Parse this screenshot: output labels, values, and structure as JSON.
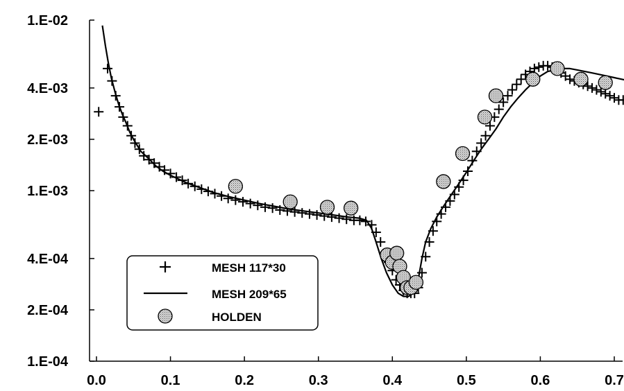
{
  "chart_data": {
    "type": "line",
    "title": "",
    "xlabel": "",
    "ylabel": "",
    "xlim": [
      0.0,
      0.72
    ],
    "ylim": [
      0.0001,
      0.01
    ],
    "yscale": "log",
    "grid": false,
    "legend_position": "bottom-left",
    "x_ticks": [
      "0.0",
      "0.1",
      "0.2",
      "0.3",
      "0.4",
      "0.5",
      "0.6",
      "0.7"
    ],
    "y_ticks": [
      "1.E-02",
      "4.E-03",
      "2.E-03",
      "1.E-03",
      "4.E-04",
      "2.E-04",
      "1.E-04"
    ],
    "series": [
      {
        "name": "MESH 117*30",
        "marker": "plus",
        "x": [
          0.003,
          0.015,
          0.021,
          0.026,
          0.031,
          0.036,
          0.042,
          0.047,
          0.052,
          0.058,
          0.064,
          0.071,
          0.078,
          0.085,
          0.092,
          0.1,
          0.108,
          0.116,
          0.124,
          0.133,
          0.142,
          0.151,
          0.16,
          0.169,
          0.178,
          0.188,
          0.198,
          0.208,
          0.218,
          0.228,
          0.238,
          0.248,
          0.258,
          0.268,
          0.278,
          0.288,
          0.298,
          0.308,
          0.318,
          0.328,
          0.338,
          0.348,
          0.356,
          0.364,
          0.372,
          0.378,
          0.384,
          0.39,
          0.395,
          0.4,
          0.405,
          0.41,
          0.415,
          0.42,
          0.425,
          0.43,
          0.435,
          0.44,
          0.445,
          0.45,
          0.455,
          0.46,
          0.466,
          0.472,
          0.478,
          0.484,
          0.49,
          0.496,
          0.502,
          0.508,
          0.514,
          0.52,
          0.526,
          0.532,
          0.538,
          0.544,
          0.55,
          0.556,
          0.562,
          0.568,
          0.574,
          0.58,
          0.586,
          0.592,
          0.598,
          0.604,
          0.61,
          0.616,
          0.622,
          0.628,
          0.634,
          0.64,
          0.646,
          0.652,
          0.658,
          0.664,
          0.67,
          0.676,
          0.682,
          0.688,
          0.694,
          0.7,
          0.706,
          0.712
        ],
        "y": [
          0.0029,
          0.0052,
          0.0044,
          0.0036,
          0.0031,
          0.0027,
          0.0024,
          0.0021,
          0.0019,
          0.00175,
          0.0016,
          0.00152,
          0.00145,
          0.00138,
          0.00132,
          0.00126,
          0.0012,
          0.00115,
          0.0011,
          0.00106,
          0.00102,
          0.00099,
          0.00096,
          0.00093,
          0.0009,
          0.00088,
          0.00086,
          0.00084,
          0.00082,
          0.0008,
          0.00079,
          0.00077,
          0.00076,
          0.00075,
          0.00074,
          0.00073,
          0.00072,
          0.00071,
          0.0007,
          0.00069,
          0.00068,
          0.00067,
          0.00067,
          0.00066,
          0.00063,
          0.00057,
          0.0005,
          0.00043,
          0.00038,
          0.00034,
          0.0003,
          0.00028,
          0.00026,
          0.00025,
          0.00025,
          0.00025,
          0.00027,
          0.00033,
          0.00041,
          0.0005,
          0.00058,
          0.00066,
          0.00073,
          0.0008,
          0.00087,
          0.00095,
          0.00105,
          0.00115,
          0.0013,
          0.0015,
          0.0017,
          0.0019,
          0.0021,
          0.0024,
          0.0027,
          0.003,
          0.0033,
          0.0036,
          0.0039,
          0.0042,
          0.0045,
          0.0048,
          0.005,
          0.0052,
          0.0053,
          0.0054,
          0.0054,
          0.0053,
          0.0051,
          0.0049,
          0.0047,
          0.0045,
          0.0044,
          0.0043,
          0.0042,
          0.0041,
          0.004,
          0.0039,
          0.0038,
          0.0037,
          0.0036,
          0.0035,
          0.0034,
          0.0034
        ]
      },
      {
        "name": "MESH 209*65",
        "marker": "line",
        "x": [
          0.008,
          0.012,
          0.016,
          0.02,
          0.025,
          0.03,
          0.035,
          0.04,
          0.045,
          0.05,
          0.06,
          0.07,
          0.08,
          0.09,
          0.1,
          0.12,
          0.14,
          0.16,
          0.18,
          0.2,
          0.22,
          0.24,
          0.26,
          0.28,
          0.3,
          0.32,
          0.34,
          0.355,
          0.365,
          0.372,
          0.378,
          0.385,
          0.392,
          0.4,
          0.408,
          0.415,
          0.422,
          0.428,
          0.432,
          0.436,
          0.44,
          0.445,
          0.452,
          0.46,
          0.47,
          0.48,
          0.49,
          0.5,
          0.51,
          0.52,
          0.53,
          0.54,
          0.55,
          0.56,
          0.57,
          0.58,
          0.59,
          0.6,
          0.61,
          0.62,
          0.63,
          0.64,
          0.65,
          0.66,
          0.67,
          0.68,
          0.69,
          0.7,
          0.71,
          0.72
        ],
        "y": [
          0.0093,
          0.0071,
          0.0056,
          0.0046,
          0.0038,
          0.0032,
          0.0028,
          0.0025,
          0.0022,
          0.002,
          0.0017,
          0.00155,
          0.0014,
          0.0013,
          0.00123,
          0.00112,
          0.00104,
          0.00097,
          0.00092,
          0.00088,
          0.00084,
          0.00081,
          0.00078,
          0.00076,
          0.00074,
          0.00072,
          0.0007,
          0.00069,
          0.00067,
          0.0006,
          0.0005,
          0.0004,
          0.00033,
          0.00028,
          0.00025,
          0.00024,
          0.00024,
          0.00025,
          0.00027,
          0.00032,
          0.0004,
          0.0005,
          0.0006,
          0.0007,
          0.00082,
          0.00095,
          0.0011,
          0.00128,
          0.0015,
          0.00175,
          0.002,
          0.0023,
          0.0027,
          0.0031,
          0.0035,
          0.0039,
          0.0043,
          0.0047,
          0.005,
          0.0051,
          0.0052,
          0.0052,
          0.0051,
          0.005,
          0.0049,
          0.0048,
          0.0047,
          0.0046,
          0.0045,
          0.0044
        ]
      },
      {
        "name": "HOLDEN",
        "marker": "circle",
        "x": [
          0.188,
          0.262,
          0.312,
          0.344,
          0.393,
          0.4,
          0.406,
          0.41,
          0.415,
          0.42,
          0.425,
          0.432,
          0.469,
          0.495,
          0.525,
          0.54,
          0.59,
          0.623,
          0.655,
          0.688
        ],
        "y": [
          0.00106,
          0.00086,
          0.0008,
          0.00079,
          0.00042,
          0.00038,
          0.00043,
          0.00036,
          0.00031,
          0.00027,
          0.00027,
          0.00029,
          0.00113,
          0.00165,
          0.0027,
          0.0036,
          0.0045,
          0.0052,
          0.0045,
          0.0043
        ]
      }
    ]
  }
}
